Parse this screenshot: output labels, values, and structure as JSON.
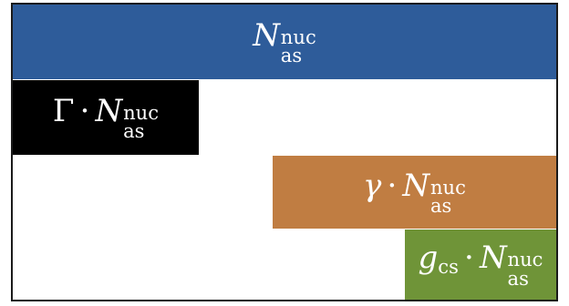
{
  "colors": {
    "bar_full": "#2E5C9A",
    "bar_capital_gamma": "#000000",
    "bar_gamma": "#C07D42",
    "bar_gcs": "#6F9438",
    "frame": "#1A1A1A"
  },
  "rows": [
    {
      "id": "full",
      "label_parts": {
        "symbol": "N",
        "superscript": "nuc",
        "subscript": "as"
      }
    },
    {
      "id": "capital-gamma",
      "label_parts": {
        "factor": "Γ",
        "dot": "·",
        "symbol": "N",
        "superscript": "nuc",
        "subscript": "as"
      }
    },
    {
      "id": "gamma",
      "label_parts": {
        "factor": "γ",
        "dot": "·",
        "symbol": "N",
        "superscript": "nuc",
        "subscript": "as"
      }
    },
    {
      "id": "gcs",
      "label_parts": {
        "factor": "g",
        "factor_subscript": "cs",
        "dot": "·",
        "symbol": "N",
        "superscript": "nuc",
        "subscript": "as"
      }
    }
  ]
}
